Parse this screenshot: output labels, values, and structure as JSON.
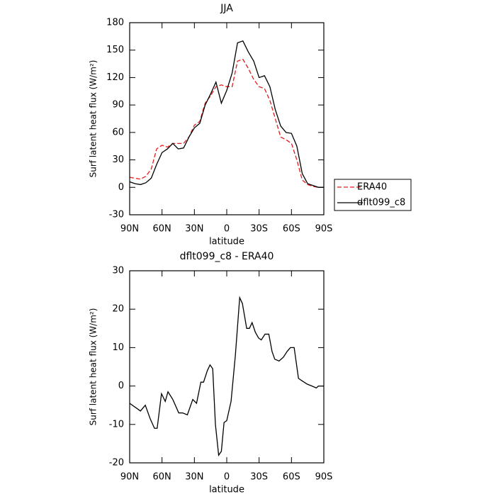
{
  "chart_data": [
    {
      "type": "line",
      "title": "JJA",
      "y_label": "Surf latent heat flux (W/m²)",
      "x_label": "latitude",
      "x": [
        90,
        85,
        80,
        75,
        70,
        65,
        60,
        55,
        50,
        45,
        40,
        35,
        30,
        25,
        20,
        15,
        10,
        5,
        0,
        -5,
        -10,
        -15,
        -20,
        -25,
        -30,
        -35,
        -40,
        -45,
        -50,
        -55,
        -60,
        -65,
        -70,
        -75,
        -80,
        -85,
        -90
      ],
      "series": [
        {
          "name": "ERA40",
          "color": "#e41a1c",
          "dashed": true,
          "values": [
            11,
            10,
            9,
            12,
            20,
            42,
            46,
            44,
            48,
            48,
            48,
            55,
            68,
            72,
            92,
            100,
            110,
            112,
            110,
            110,
            138,
            140,
            130,
            118,
            110,
            108,
            95,
            75,
            55,
            52,
            48,
            30,
            8,
            3,
            1,
            0,
            0
          ]
        },
        {
          "name": "dflt099_c8",
          "color": "#000000",
          "dashed": false,
          "values": [
            6,
            4,
            3,
            5,
            10,
            25,
            38,
            42,
            48,
            42,
            43,
            55,
            65,
            70,
            90,
            102,
            115,
            92,
            106,
            125,
            158,
            160,
            148,
            138,
            120,
            122,
            110,
            85,
            67,
            60,
            59,
            45,
            15,
            4,
            2,
            0,
            0
          ]
        }
      ],
      "xlim": [
        90,
        -90
      ],
      "xticks": [
        {
          "value": 90,
          "label": "90N"
        },
        {
          "value": 60,
          "label": "60N"
        },
        {
          "value": 30,
          "label": "30N"
        },
        0,
        {
          "value": -30,
          "label": "30S"
        },
        {
          "value": -60,
          "label": "60S"
        },
        {
          "value": -90,
          "label": "90S"
        }
      ],
      "ylim": [
        -30,
        180
      ],
      "yticks": [
        -30,
        0,
        30,
        60,
        90,
        120,
        150,
        180
      ],
      "legend": "right"
    },
    {
      "type": "line",
      "title": "dflt099_c8 - ERA40",
      "y_label": "Surf latent heat flux (W/m²)",
      "x_label": "latitude",
      "x": [
        90,
        80,
        75.5,
        71,
        67,
        64.5,
        60.5,
        57,
        54.5,
        50,
        44.5,
        41,
        36.5,
        31.5,
        28,
        24,
        21.5,
        18,
        15.5,
        13,
        10.5,
        7.5,
        5,
        2.5,
        0,
        -4,
        -8,
        -12,
        -14.5,
        -18.5,
        -21,
        -23.5,
        -26.5,
        -29.5,
        -32,
        -35.5,
        -39,
        -42,
        -44.5,
        -48.5,
        -52.5,
        -56,
        -59,
        -62.5,
        -66.5,
        -69,
        -74.5,
        -79,
        -83,
        -85,
        -90
      ],
      "series": [
        {
          "color": "#000000",
          "dashed": false,
          "values": [
            -4.5,
            -6.5,
            -5,
            -8.5,
            -11,
            -11,
            -2,
            -4,
            -1.5,
            -3.5,
            -7,
            -7,
            -7.5,
            -3.5,
            -4.5,
            1,
            1,
            4,
            5.5,
            4.5,
            -10,
            -18,
            -17,
            -9.5,
            -9,
            -4,
            8,
            23,
            21.5,
            15,
            15,
            16.5,
            14,
            12.5,
            12,
            13.5,
            13.5,
            9,
            7,
            6.5,
            7.5,
            9,
            10,
            10,
            2,
            1.5,
            0.5,
            0,
            -0.5,
            0,
            0
          ]
        }
      ],
      "xlim": [
        90,
        -90
      ],
      "xticks": [
        {
          "value": 90,
          "label": "90N"
        },
        {
          "value": 60,
          "label": "60N"
        },
        {
          "value": 30,
          "label": "30N"
        },
        0,
        {
          "value": -30,
          "label": "30S"
        },
        {
          "value": -60,
          "label": "60S"
        },
        {
          "value": -90,
          "label": "90S"
        }
      ],
      "ylim": [
        -20,
        30
      ],
      "yticks": [
        -20,
        -10,
        0,
        10,
        20,
        30
      ]
    }
  ]
}
